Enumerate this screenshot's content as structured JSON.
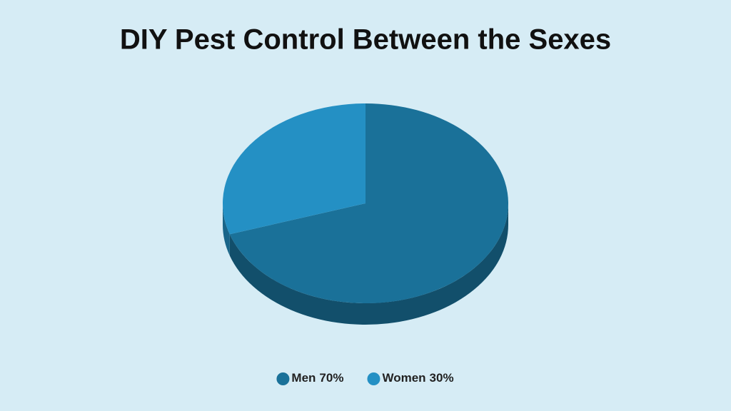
{
  "chart_data": {
    "type": "pie",
    "title": "DIY Pest Control Between the Sexes",
    "categories": [
      "Men",
      "Women"
    ],
    "values": [
      70,
      30
    ],
    "value_labels": [
      "70%",
      "30%"
    ],
    "colors": [
      "#1a7199",
      "#2490c4"
    ],
    "legend": "bottom"
  }
}
